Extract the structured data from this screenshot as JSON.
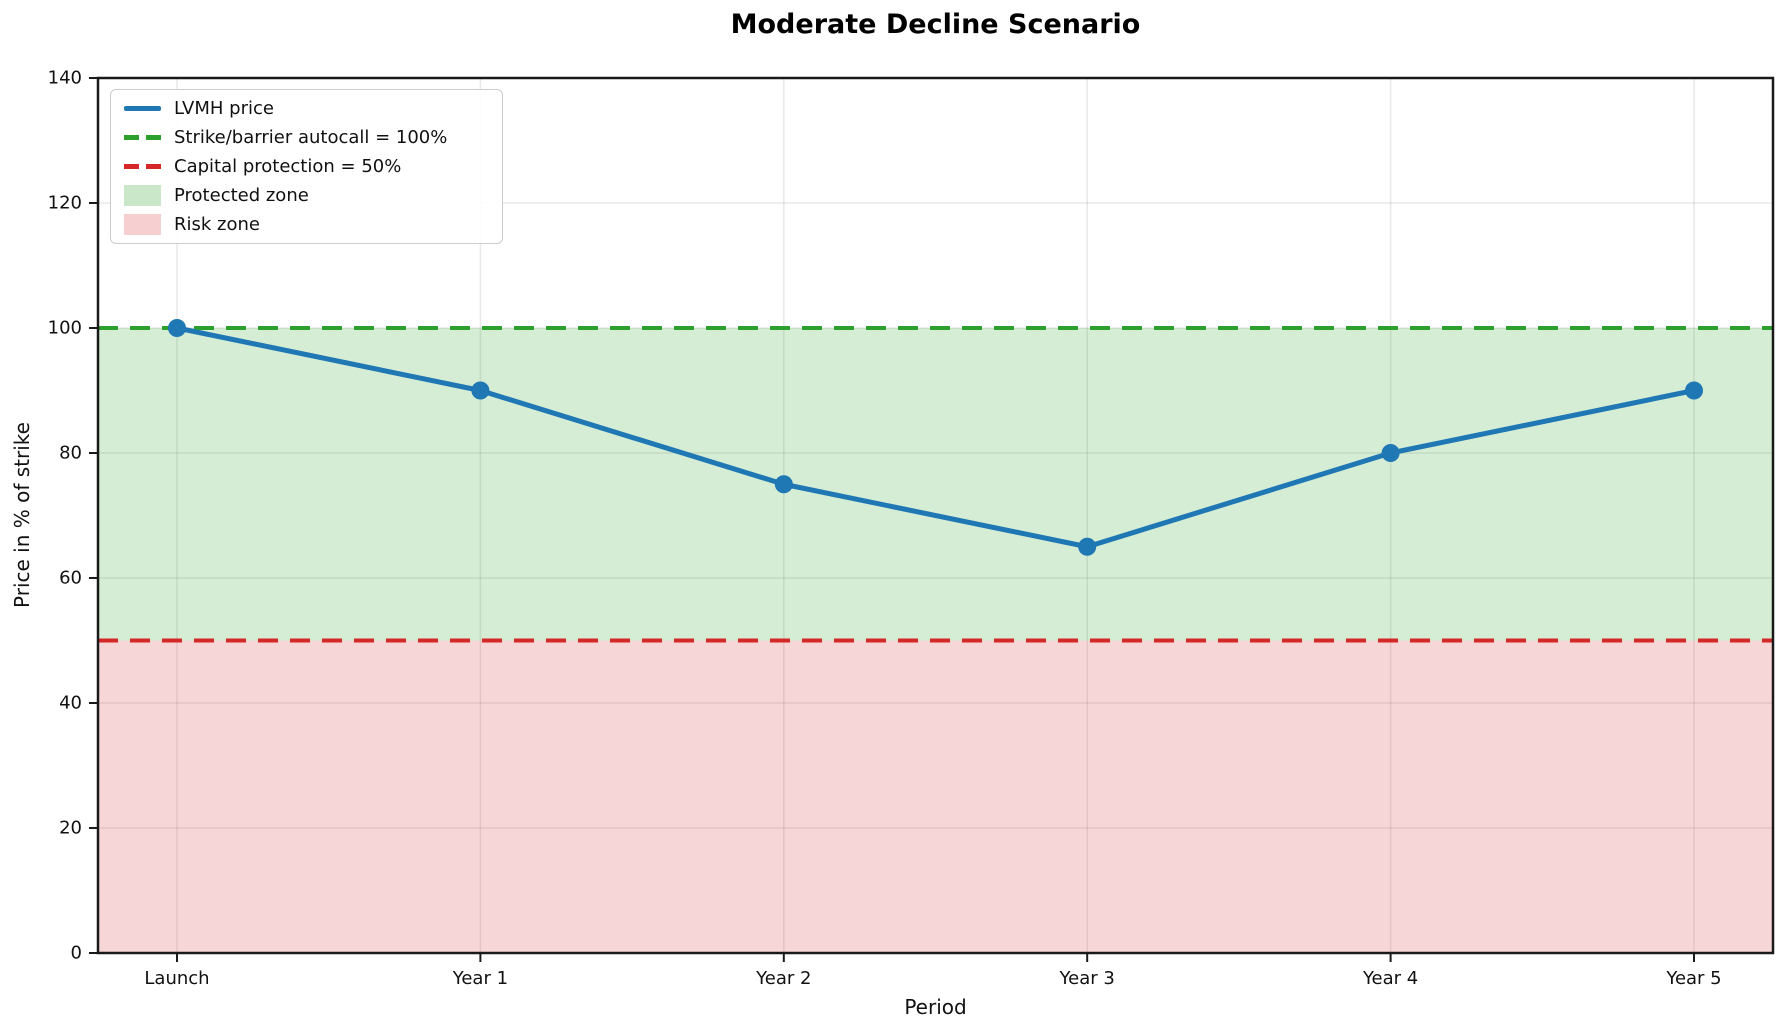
{
  "chart_data": {
    "type": "line",
    "title": "Moderate Decline Scenario",
    "xlabel": "Period",
    "ylabel": "Price in % of strike",
    "categories": [
      "Launch",
      "Year 1",
      "Year 2",
      "Year 3",
      "Year 4",
      "Year 5"
    ],
    "series": [
      {
        "name": "LVMH price",
        "values": [
          100,
          90,
          75,
          65,
          80,
          90
        ],
        "color": "#1f77b4",
        "marker": "circle",
        "line_style": "solid"
      }
    ],
    "hlines": [
      {
        "label": "Strike/barrier autocall = 100%",
        "y": 100,
        "color": "#2ca02c",
        "line_style": "dashed"
      },
      {
        "label": "Capital protection = 50%",
        "y": 50,
        "color": "#d62728",
        "line_style": "dashed"
      }
    ],
    "zones": [
      {
        "label": "Protected zone",
        "from": 50,
        "to": 100,
        "color": "#2ca02c",
        "alpha": 0.2
      },
      {
        "label": "Risk zone",
        "from": 0,
        "to": 50,
        "color": "#d62728",
        "alpha": 0.19
      }
    ],
    "ylim": [
      0,
      140
    ],
    "yticks": [
      0,
      20,
      40,
      60,
      80,
      100,
      120,
      140
    ],
    "grid": true,
    "legend_position": "upper left",
    "legend": [
      {
        "label": "LVMH price",
        "swatch": "line",
        "color": "#1f77b4"
      },
      {
        "label": "Strike/barrier autocall = 100%",
        "swatch": "dash",
        "color": "#2ca02c"
      },
      {
        "label": "Capital protection = 50%",
        "swatch": "dash",
        "color": "#d62728"
      },
      {
        "label": "Protected zone",
        "swatch": "patch",
        "color": "#2ca02c",
        "alpha": 0.25
      },
      {
        "label": "Risk zone",
        "swatch": "patch",
        "color": "#d62728",
        "alpha": 0.22
      }
    ],
    "colors": {
      "spine": "#1a1a1a",
      "grid": "#000000",
      "text": "#111111"
    }
  }
}
